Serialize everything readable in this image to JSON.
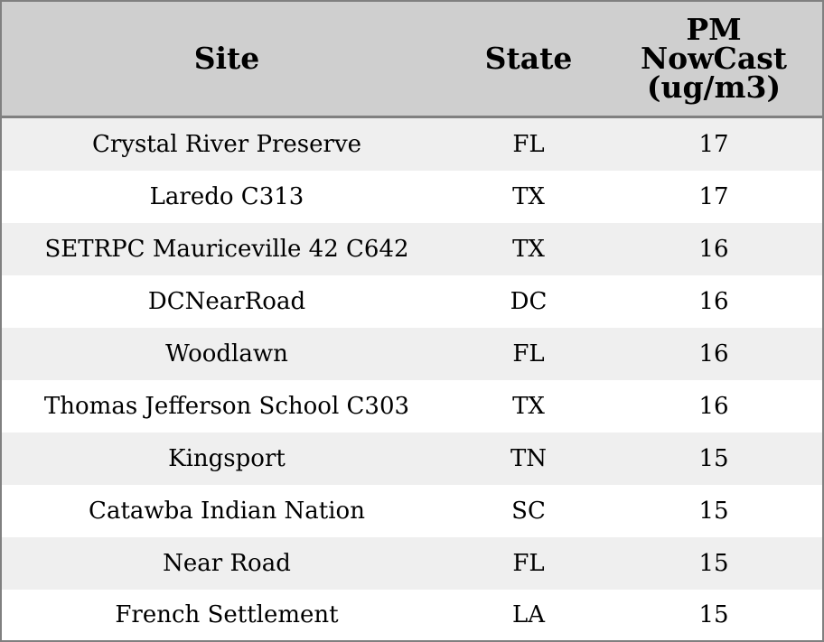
{
  "table": {
    "headers": {
      "site": "Site",
      "state": "State",
      "pm_line1": "PM",
      "pm_line2": "NowCast",
      "pm_line3": "(ug/m3)"
    },
    "rows": [
      {
        "site": "Crystal River Preserve",
        "state": "FL",
        "pm": "17"
      },
      {
        "site": "Laredo C313",
        "state": "TX",
        "pm": "17"
      },
      {
        "site": "SETRPC Mauriceville 42 C642",
        "state": "TX",
        "pm": "16"
      },
      {
        "site": "DCNearRoad",
        "state": "DC",
        "pm": "16"
      },
      {
        "site": "Woodlawn",
        "state": "FL",
        "pm": "16"
      },
      {
        "site": "Thomas Jefferson School C303",
        "state": "TX",
        "pm": "16"
      },
      {
        "site": "Kingsport",
        "state": "TN",
        "pm": "15"
      },
      {
        "site": "Catawba Indian Nation",
        "state": "SC",
        "pm": "15"
      },
      {
        "site": "Near Road",
        "state": "FL",
        "pm": "15"
      },
      {
        "site": "French Settlement",
        "state": "LA",
        "pm": "15"
      }
    ],
    "colors": {
      "header_bg": "#cfcfcf",
      "row_odd": "#efefef",
      "row_even": "#ffffff",
      "border": "#808080"
    }
  }
}
